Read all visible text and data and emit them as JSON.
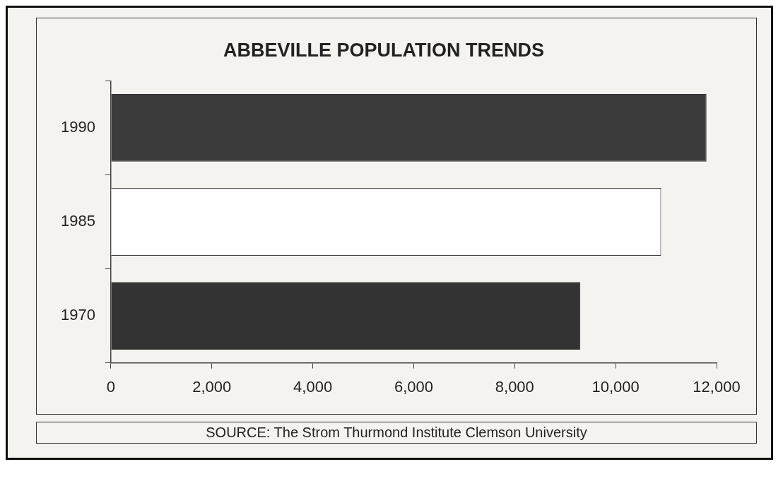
{
  "chart_data": {
    "type": "bar",
    "orientation": "horizontal",
    "title": "ABBEVILLE POPULATION TRENDS",
    "categories": [
      "1990",
      "1985",
      "1970"
    ],
    "values": [
      11800,
      10900,
      9300
    ],
    "colors": [
      "#3b3b3b",
      "#ffffff",
      "#333333"
    ],
    "xlim": [
      0,
      12000
    ],
    "xticks": [
      {
        "value": 0,
        "label": "0"
      },
      {
        "value": 2000,
        "label": "2,000"
      },
      {
        "value": 4000,
        "label": "4,000"
      },
      {
        "value": 6000,
        "label": "6,000"
      },
      {
        "value": 8000,
        "label": "8,000"
      },
      {
        "value": 10000,
        "label": "10,000"
      },
      {
        "value": 12000,
        "label": "12,000"
      }
    ],
    "grid": false,
    "legend": false,
    "annotations": [
      "SOURCE: The Strom Thurmond Institute Clemson University"
    ]
  }
}
